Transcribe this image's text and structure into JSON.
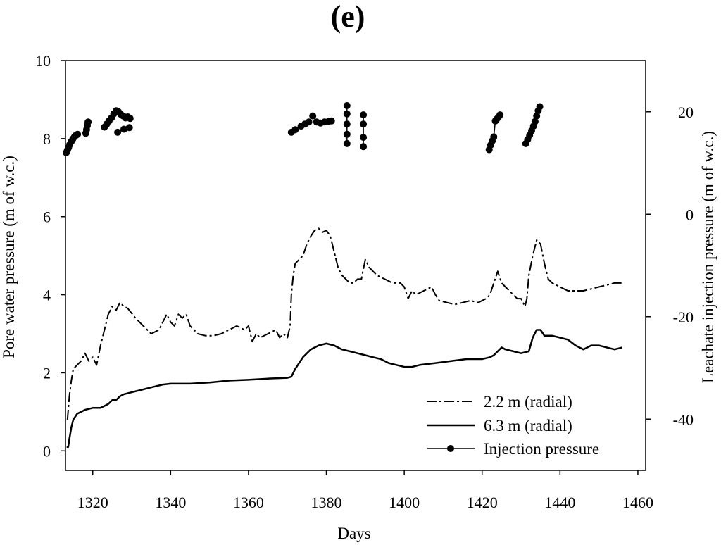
{
  "panel_label": "(e)",
  "chart_data": {
    "type": "line",
    "xlabel": "Days",
    "ylabel": "Pore water pressure (m of w.c.)",
    "y2label": "Leachate injection pressure (m of w.c.)",
    "xlim": [
      1313,
      1462
    ],
    "ylim": [
      -0.5,
      10
    ],
    "y2lim": [
      -50,
      30
    ],
    "x_ticks": [
      1320,
      1340,
      1360,
      1380,
      1400,
      1420,
      1440,
      1460
    ],
    "y_ticks": [
      0,
      2,
      4,
      6,
      8,
      10
    ],
    "y2_ticks": [
      -40,
      -20,
      0,
      20
    ],
    "legend_position": "bottom-right",
    "grid": false,
    "series": [
      {
        "name": "2.2 m (radial)",
        "axis": "left",
        "style": "dash-dot",
        "x": [
          1313.5,
          1314,
          1314.5,
          1315,
          1316,
          1317,
          1318,
          1319,
          1320,
          1321,
          1322,
          1323,
          1324,
          1325,
          1326,
          1327,
          1328,
          1329,
          1331,
          1333,
          1335,
          1337,
          1338,
          1339,
          1340,
          1341,
          1342,
          1343,
          1344,
          1345,
          1347,
          1349,
          1351,
          1353,
          1355,
          1357,
          1359,
          1360,
          1361,
          1362,
          1363,
          1365,
          1367,
          1368,
          1369,
          1370,
          1370.7,
          1371,
          1371.5,
          1372,
          1373,
          1374,
          1375,
          1376,
          1377,
          1378,
          1379,
          1380,
          1381,
          1382,
          1383,
          1384,
          1385,
          1386,
          1387,
          1388,
          1389,
          1390,
          1391,
          1393,
          1395,
          1397,
          1399,
          1400,
          1401,
          1402,
          1403,
          1405,
          1407,
          1408,
          1409,
          1411,
          1413,
          1415,
          1417,
          1419,
          1421,
          1422,
          1423,
          1424,
          1425,
          1426,
          1427,
          1428,
          1429,
          1430,
          1431,
          1431.5,
          1432,
          1433,
          1434,
          1435,
          1436,
          1437,
          1438,
          1440,
          1442,
          1444,
          1446,
          1448,
          1450,
          1452,
          1454,
          1456
        ],
        "y": [
          0.8,
          1.4,
          1.8,
          2.1,
          2.2,
          2.3,
          2.5,
          2.3,
          2.4,
          2.2,
          2.7,
          3.1,
          3.5,
          3.7,
          3.6,
          3.8,
          3.7,
          3.65,
          3.4,
          3.2,
          3.0,
          3.1,
          3.3,
          3.5,
          3.3,
          3.2,
          3.5,
          3.4,
          3.5,
          3.2,
          3.0,
          2.95,
          2.95,
          3.0,
          3.1,
          3.2,
          3.1,
          3.2,
          2.8,
          3.0,
          2.9,
          3.0,
          3.1,
          2.9,
          3.0,
          2.9,
          3.2,
          4.0,
          4.5,
          4.8,
          4.9,
          5.0,
          5.3,
          5.5,
          5.65,
          5.7,
          5.6,
          5.65,
          5.5,
          5.1,
          4.7,
          4.5,
          4.4,
          4.3,
          4.3,
          4.4,
          4.4,
          4.9,
          4.7,
          4.5,
          4.4,
          4.3,
          4.3,
          4.2,
          3.9,
          4.1,
          4.0,
          4.1,
          4.2,
          4.0,
          3.85,
          3.8,
          3.75,
          3.8,
          3.85,
          3.8,
          3.9,
          4.0,
          4.3,
          4.6,
          4.3,
          4.2,
          4.1,
          4.0,
          3.9,
          3.9,
          3.7,
          3.9,
          4.5,
          5.0,
          5.4,
          5.3,
          4.8,
          4.4,
          4.3,
          4.2,
          4.1,
          4.1,
          4.1,
          4.15,
          4.2,
          4.25,
          4.3,
          4.3
        ]
      },
      {
        "name": "6.3 m (radial)",
        "axis": "left",
        "style": "solid",
        "x": [
          1313.3,
          1313.7,
          1314,
          1314.5,
          1315,
          1316,
          1317,
          1318,
          1320,
          1322,
          1324,
          1325,
          1326,
          1327,
          1328,
          1330,
          1332,
          1334,
          1336,
          1338,
          1340,
          1345,
          1350,
          1355,
          1360,
          1365,
          1370,
          1371,
          1372,
          1374,
          1376,
          1378,
          1380,
          1382,
          1384,
          1386,
          1388,
          1390,
          1392,
          1394,
          1396,
          1398,
          1400,
          1402,
          1404,
          1408,
          1412,
          1416,
          1420,
          1422,
          1423,
          1424,
          1425,
          1426,
          1428,
          1430,
          1432,
          1433,
          1434,
          1435,
          1436,
          1438,
          1440,
          1442,
          1444,
          1446,
          1448,
          1450,
          1452,
          1454,
          1456
        ],
        "y": [
          0.1,
          0.1,
          0.3,
          0.6,
          0.8,
          0.95,
          1.0,
          1.05,
          1.1,
          1.1,
          1.2,
          1.3,
          1.3,
          1.4,
          1.45,
          1.5,
          1.55,
          1.6,
          1.65,
          1.7,
          1.72,
          1.72,
          1.75,
          1.8,
          1.82,
          1.85,
          1.87,
          1.9,
          2.1,
          2.4,
          2.6,
          2.7,
          2.75,
          2.7,
          2.6,
          2.55,
          2.5,
          2.45,
          2.4,
          2.35,
          2.25,
          2.2,
          2.15,
          2.15,
          2.2,
          2.25,
          2.3,
          2.35,
          2.35,
          2.4,
          2.45,
          2.55,
          2.65,
          2.6,
          2.55,
          2.5,
          2.55,
          2.9,
          3.1,
          3.1,
          2.95,
          2.95,
          2.9,
          2.85,
          2.7,
          2.6,
          2.7,
          2.7,
          2.65,
          2.6,
          2.65
        ]
      },
      {
        "name": "Injection pressure",
        "axis": "right",
        "style": "solid-markers",
        "segments": [
          {
            "x": [
              1313.2,
              1313.5,
              1313.8,
              1314.1,
              1314.5,
              1314.9,
              1315.3,
              1315.7,
              1316.1
            ],
            "y": [
              12,
              12.5,
              13,
              13.6,
              14.2,
              14.7,
              15.1,
              15.4,
              15.6
            ]
          },
          {
            "x": [
              1318.2,
              1318.4,
              1318.6,
              1318.8
            ],
            "y": [
              15.8,
              16.5,
              17.3,
              18.0
            ]
          },
          {
            "x": [
              1323.0,
              1323.6,
              1324.2,
              1324.8,
              1325.4,
              1326.0,
              1326.6,
              1327.2,
              1327.8,
              1328.4,
              1329.0,
              1329.6
            ],
            "y": [
              17.0,
              17.6,
              18.2,
              18.8,
              19.6,
              20.2,
              20.0,
              19.5,
              19.2,
              18.8,
              19.0,
              18.7
            ]
          },
          {
            "x": [
              1326.4,
              1328.0,
              1329.4
            ],
            "y": [
              16.0,
              16.6,
              16.9
            ]
          },
          {
            "x": [
              1371.0,
              1372.0,
              1373.5,
              1374.5,
              1375.5,
              1376.5,
              1377.5,
              1378.5,
              1379.5,
              1380.5,
              1381.3
            ],
            "y": [
              16.0,
              16.5,
              17.2,
              17.6,
              18.0,
              19.2,
              18.0,
              17.8,
              18.0,
              18.1,
              18.2
            ]
          },
          {
            "x": [
              1385.3,
              1385.3,
              1385.3,
              1385.3,
              1385.3
            ],
            "y": [
              21.2,
              19.6,
              17.6,
              15.6,
              13.8
            ]
          },
          {
            "x": [
              1389.5,
              1389.5,
              1389.5,
              1389.5
            ],
            "y": [
              19.4,
              17.6,
              15.0,
              13.2
            ]
          },
          {
            "x": [
              1421.8,
              1422.2,
              1422.6,
              1423.0,
              1423.4,
              1423.8,
              1424.2,
              1424.6
            ],
            "y": [
              12.6,
              13.5,
              14.3,
              15.1,
              18.2,
              18.6,
              19.0,
              19.4
            ]
          },
          {
            "x": [
              1431.2,
              1431.7,
              1432.2,
              1432.7,
              1433.2,
              1433.6,
              1434.0,
              1434.4,
              1434.8
            ],
            "y": [
              13.8,
              14.6,
              15.4,
              16.3,
              17.2,
              18.1,
              19.2,
              20.2,
              21.0
            ]
          }
        ]
      }
    ]
  }
}
